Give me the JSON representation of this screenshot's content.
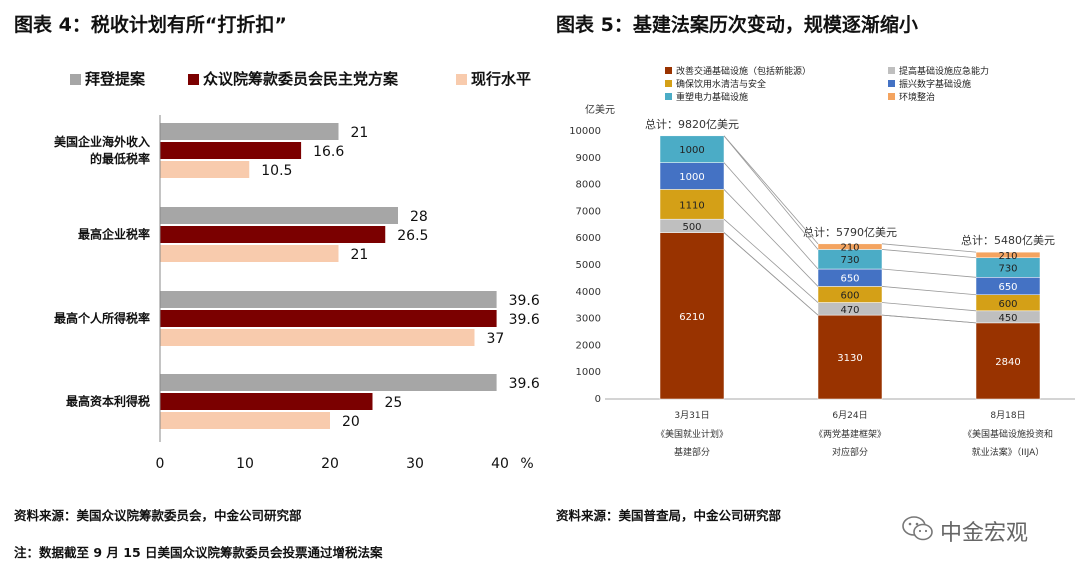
{
  "left": {
    "title": "图表 4：税收计划有所“打折扣”",
    "source": "资料来源：美国众议院筹款委员会，中金公司研究部",
    "note": "注：数据截至 9 月 15 日美国众议院筹款委员会投票通过增税法案"
  },
  "right": {
    "title": "图表 5：基建法案历次变动，规模逐渐缩小",
    "source": "资料来源：美国普查局，中金公司研究部"
  },
  "logo": {
    "text": "中金宏观",
    "icon": "wechat-icon"
  },
  "chart_data": [
    {
      "type": "bar",
      "orientation": "horizontal",
      "categories": [
        "美国企业海外收入\n的最低税率",
        "最高企业税率",
        "最高个人所得税率",
        "最高资本利得税"
      ],
      "series": [
        {
          "name": "拜登提案",
          "color": "#a6a6a6",
          "values": [
            21,
            28,
            39.6,
            39.6
          ]
        },
        {
          "name": "众议院筹款委员会民主党方案",
          "color": "#7b0000",
          "values": [
            16.6,
            26.5,
            39.6,
            25
          ]
        },
        {
          "name": "现行水平",
          "color": "#f8cbad",
          "values": [
            10.5,
            21,
            37,
            20
          ]
        }
      ],
      "xlim": [
        0,
        40
      ],
      "xticks": [
        "0",
        "10",
        "20",
        "30",
        "40"
      ],
      "xunit": "%",
      "legend": "top",
      "grid": false
    },
    {
      "type": "bar",
      "stacked": true,
      "categories": [
        "3月31日",
        "6月24日",
        "8月18日"
      ],
      "category_sublabels": [
        [
          "《美国就业计划》",
          "基建部分"
        ],
        [
          "《两党基建框架》",
          "对应部分"
        ],
        [
          "《美国基础设施投资和",
          "就业法案》（IIJA）"
        ]
      ],
      "series": [
        {
          "name": "改善交通基础设施（包括新能源）",
          "color": "#993300",
          "values": [
            6210,
            3130,
            2840
          ]
        },
        {
          "name": "提高基础设施应急能力",
          "color": "#bfbfbf",
          "values": [
            500,
            470,
            450
          ]
        },
        {
          "name": "确保饮用水清洁与安全",
          "color": "#d4a017",
          "values": [
            1110,
            600,
            600
          ]
        },
        {
          "name": "振兴数字基础设施",
          "color": "#4472c4",
          "values": [
            1000,
            650,
            650
          ]
        },
        {
          "name": "重塑电力基础设施",
          "color": "#4bacc6",
          "values": [
            1000,
            730,
            730
          ]
        },
        {
          "name": "环境整治",
          "color": "#f4a460",
          "values": [
            0,
            210,
            210
          ]
        }
      ],
      "totals": [
        "总计：9820亿美元",
        "总计：5790亿美元",
        "总计：5480亿美元"
      ],
      "ylabel": "亿美元",
      "ylim": [
        0,
        10000
      ],
      "yticks": [
        "0",
        "1000",
        "2000",
        "3000",
        "4000",
        "5000",
        "6000",
        "7000",
        "8000",
        "9000",
        "10000"
      ],
      "legend": "top",
      "grid": false
    }
  ]
}
